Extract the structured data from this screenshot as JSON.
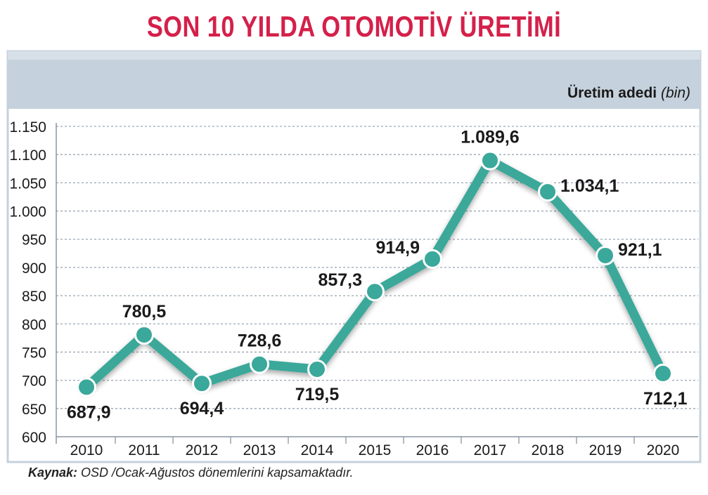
{
  "title": "SON 10 YILDA OTOMOTİV ÜRETİMİ",
  "unit_label": {
    "main": "Üretim adedi",
    "unit": "(bin)"
  },
  "source": {
    "label": "Kaynak:",
    "text": "OSD /Ocak-Ağustos dönemlerini kapsamaktadır."
  },
  "colors": {
    "title": "#d4204a",
    "line": "#3aa89a",
    "panel": "#c5d1dc",
    "grid": "#9aa6b2"
  },
  "chart_data": {
    "type": "line",
    "x": [
      "2010",
      "2011",
      "2012",
      "2013",
      "2014",
      "2015",
      "2016",
      "2017",
      "2018",
      "2019",
      "2020"
    ],
    "values": [
      687.9,
      780.5,
      694.4,
      728.6,
      719.5,
      857.3,
      914.9,
      1089.6,
      1034.1,
      921.1,
      712.1
    ],
    "value_labels": [
      "687,9",
      "780,5",
      "694,4",
      "728,6",
      "719,5",
      "857,3",
      "914,9",
      "1.089,6",
      "1.034,1",
      "921,1",
      "712,1"
    ],
    "label_positions": [
      "below",
      "above",
      "below",
      "above",
      "below",
      "left",
      "left",
      "above",
      "right",
      "right",
      "below"
    ],
    "ylim": [
      600,
      1150
    ],
    "yticks": [
      600,
      650,
      700,
      750,
      800,
      850,
      900,
      950,
      1000,
      1050,
      1100,
      1150
    ],
    "ytick_labels": [
      "600",
      "650",
      "700",
      "750",
      "800",
      "850",
      "900",
      "950",
      "1.000",
      "1.050",
      "1.100",
      "1.150"
    ],
    "grid": true
  }
}
